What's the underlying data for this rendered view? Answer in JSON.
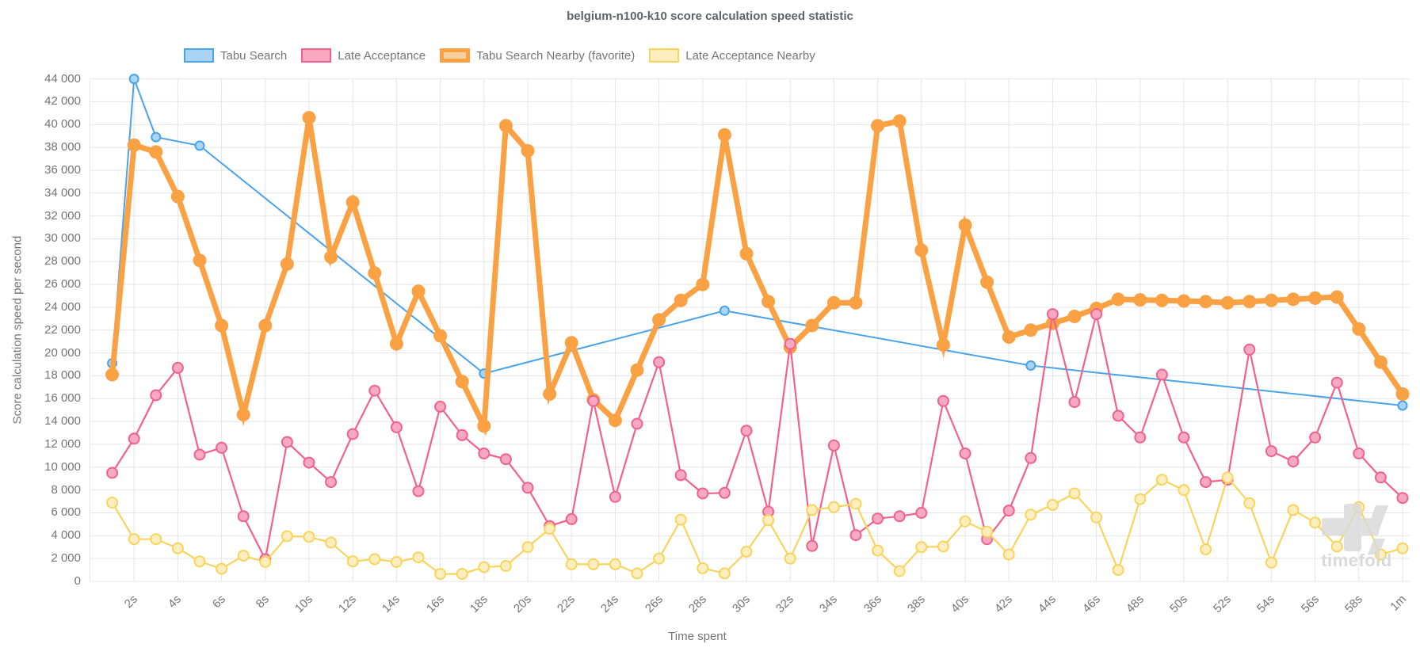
{
  "chart_data": {
    "type": "line",
    "title": "belgium-n100-k10 score calculation speed statistic",
    "xlabel": "Time spent",
    "ylabel": "Score calculation speed per second",
    "legend_position": "top",
    "grid": true,
    "watermark": "timefold",
    "x_ticks": [
      "2s",
      "4s",
      "6s",
      "8s",
      "10s",
      "12s",
      "14s",
      "16s",
      "18s",
      "20s",
      "22s",
      "24s",
      "26s",
      "28s",
      "30s",
      "32s",
      "34s",
      "36s",
      "38s",
      "40s",
      "42s",
      "44s",
      "46s",
      "48s",
      "50s",
      "52s",
      "54s",
      "56s",
      "58s",
      "1m"
    ],
    "x_tick_seconds": [
      2,
      4,
      6,
      8,
      10,
      12,
      14,
      16,
      18,
      20,
      22,
      24,
      26,
      28,
      30,
      32,
      34,
      36,
      38,
      40,
      42,
      44,
      46,
      48,
      50,
      52,
      54,
      56,
      58,
      60
    ],
    "y_axis": {
      "min": 0,
      "max": 44000,
      "step": 2000,
      "tick_labels": [
        "44 000",
        "42 000",
        "40 000",
        "38 000",
        "36 000",
        "34 000",
        "32 000",
        "30 000",
        "28 000",
        "26 000",
        "24 000",
        "22 000",
        "20 000",
        "18 000",
        "16 000",
        "14 000",
        "12 000",
        "10 000",
        "8 000",
        "6 000",
        "4 000",
        "2 000",
        "0"
      ]
    },
    "series": [
      {
        "name": "Tabu Search",
        "color": "#4aa3e8",
        "fill": "#a9d4f5",
        "line_width": 2,
        "marker_radius": 5.5,
        "points": [
          [
            1,
            19100
          ],
          [
            2,
            44000
          ],
          [
            3,
            38900
          ],
          [
            5,
            38150
          ],
          [
            18,
            18200
          ],
          [
            29,
            23700
          ],
          [
            43,
            18900
          ],
          [
            60,
            15400
          ]
        ]
      },
      {
        "name": "Tabu Search Nearby (favorite)",
        "color": "#faa144",
        "fill": "#faa144",
        "line_width": 7,
        "marker_radius": 7.5,
        "favorite": true,
        "values": [
          18100,
          38200,
          37600,
          33700,
          28100,
          22400,
          14600,
          22400,
          27800,
          40600,
          28400,
          33200,
          27000,
          20800,
          25400,
          21500,
          17500,
          13600,
          39900,
          37700,
          16400,
          20900,
          15900,
          14100,
          18500,
          22900,
          24600,
          26000,
          39100,
          28700,
          24500,
          20500,
          22400,
          24400,
          24400,
          39900,
          40300,
          29000,
          20700,
          31200,
          26200,
          21400,
          22000,
          22600,
          23200,
          23900,
          24700,
          24650,
          24600,
          24550,
          24500,
          24400,
          24500,
          24600,
          24700,
          24800,
          24900,
          22100,
          19200,
          16400
        ]
      },
      {
        "name": "Late Acceptance",
        "color": "#f0628d",
        "fill": "#f6a9c0",
        "line_width": 2.2,
        "marker_radius": 6.5,
        "values": [
          9500,
          12500,
          16300,
          18700,
          11100,
          11700,
          5700,
          1950,
          12200,
          10400,
          8700,
          12900,
          16700,
          13500,
          7900,
          15300,
          12800,
          11200,
          10700,
          8200,
          4850,
          5450,
          15800,
          7400,
          13800,
          19200,
          9300,
          7700,
          7750,
          13200,
          6100,
          20800,
          3100,
          11900,
          4050,
          5500,
          5700,
          6000,
          15800,
          11200,
          3700,
          6200,
          10800,
          23400,
          15700,
          23400,
          14500,
          12600,
          18100,
          12600,
          8700,
          8900,
          20300,
          11400,
          10500,
          12600,
          17400,
          11200,
          9100,
          7300
        ]
      },
      {
        "name": "Late Acceptance Nearby",
        "color": "#f8d45c",
        "fill": "#fceebf",
        "line_width": 2.2,
        "marker_radius": 6.5,
        "values": [
          6900,
          3700,
          3700,
          2900,
          1750,
          1100,
          2250,
          1700,
          3950,
          3900,
          3400,
          1750,
          1950,
          1700,
          2100,
          650,
          650,
          1250,
          1350,
          3000,
          4600,
          1500,
          1500,
          1500,
          700,
          2000,
          5400,
          1150,
          700,
          2600,
          5350,
          2000,
          6250,
          6500,
          6800,
          2700,
          900,
          3000,
          3050,
          5250,
          4350,
          2350,
          5850,
          6700,
          7700,
          5600,
          1000,
          7200,
          8900,
          8000,
          2800,
          9100,
          6850,
          1650,
          6250,
          5150,
          3050,
          6500,
          2350,
          2900
        ]
      }
    ],
    "legend_order": [
      "Tabu Search",
      "Late Acceptance",
      "Tabu Search Nearby (favorite)",
      "Late Acceptance Nearby"
    ],
    "draw_order": [
      "Tabu Search",
      "Tabu Search Nearby (favorite)",
      "Late Acceptance",
      "Late Acceptance Nearby"
    ]
  }
}
